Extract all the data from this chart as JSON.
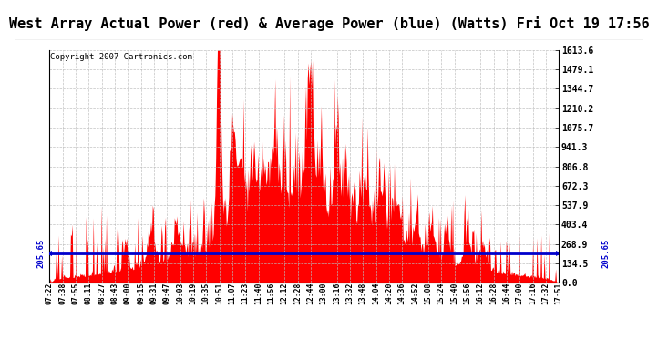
{
  "title": "West Array Actual Power (red) & Average Power (blue) (Watts) Fri Oct 19 17:56",
  "copyright": "Copyright 2007 Cartronics.com",
  "avg_power": 205.65,
  "y_max": 1613.6,
  "y_min": 0.0,
  "y_ticks": [
    0.0,
    134.5,
    268.9,
    403.4,
    537.9,
    672.3,
    806.8,
    941.3,
    1075.7,
    1210.2,
    1344.7,
    1479.1,
    1613.6
  ],
  "x_labels": [
    "07:22",
    "07:38",
    "07:55",
    "08:11",
    "08:27",
    "08:43",
    "09:00",
    "09:15",
    "09:31",
    "09:47",
    "10:03",
    "10:19",
    "10:35",
    "10:51",
    "11:07",
    "11:23",
    "11:40",
    "11:56",
    "12:12",
    "12:28",
    "12:44",
    "13:00",
    "13:16",
    "13:32",
    "13:48",
    "14:04",
    "14:20",
    "14:36",
    "14:52",
    "15:08",
    "15:24",
    "15:40",
    "15:56",
    "16:12",
    "16:28",
    "16:44",
    "17:00",
    "17:16",
    "17:32",
    "17:51"
  ],
  "bar_color": "#FF0000",
  "line_color": "#0000CC",
  "bg_color": "#FFFFFF",
  "grid_color": "#BBBBBB",
  "title_bg": "#DDDDDD",
  "title_fontsize": 11,
  "copyright_fontsize": 6.5
}
